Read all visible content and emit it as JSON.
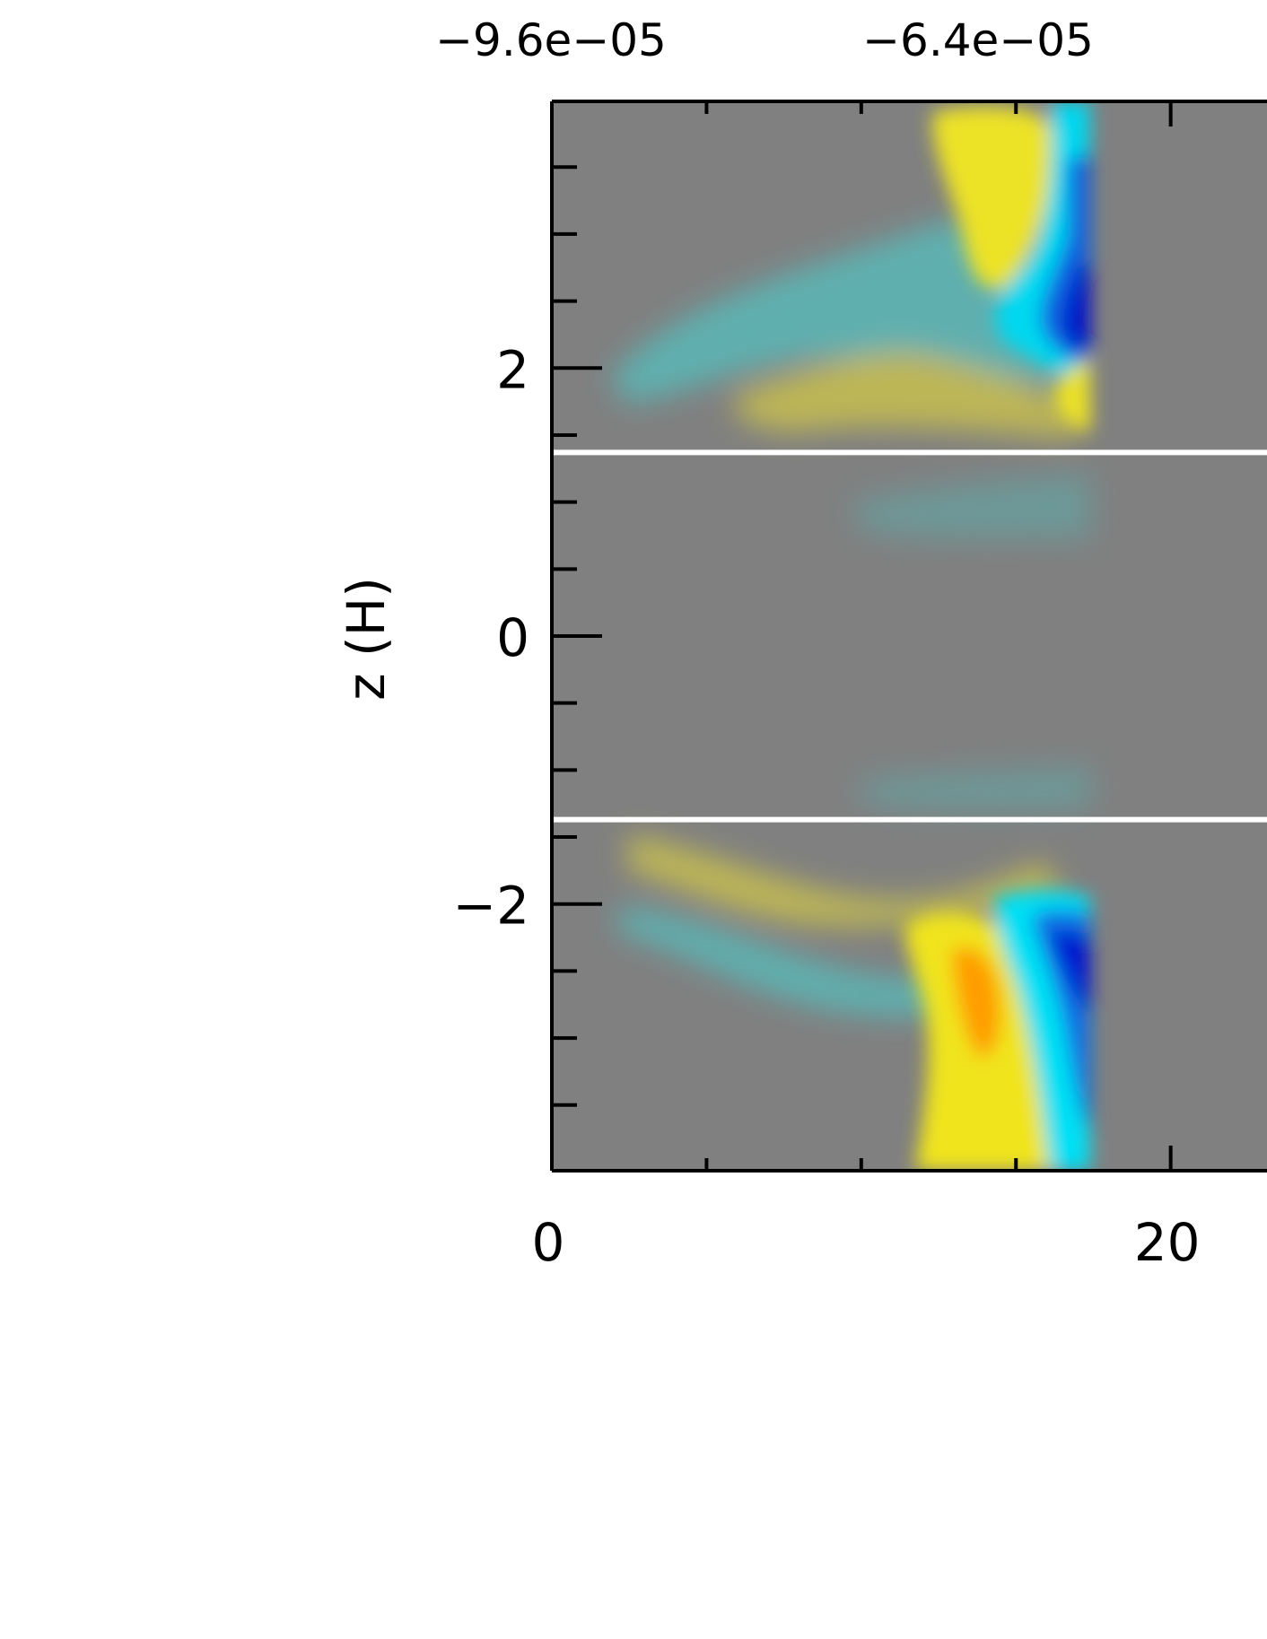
{
  "chart_data": {
    "type": "heatmap",
    "colorbar": {
      "tick_labels": [
        "−9.6e−05",
        "−6.4e−05"
      ],
      "tick_values": [
        -9.6e-05,
        -6.4e-05
      ]
    },
    "x_axis": {
      "tick_labels": [
        "0",
        "20"
      ],
      "tick_values": [
        0,
        20
      ],
      "range": [
        0,
        23.2
      ]
    },
    "y_axis": {
      "label": "z (H)",
      "tick_labels": [
        "2",
        "0",
        "−2"
      ],
      "tick_values": [
        2,
        0,
        -2
      ],
      "range": [
        -3.99,
        3.99
      ],
      "minor_step": 0.5
    },
    "white_lines_z": [
      1.37,
      -1.37
    ],
    "colors": {
      "background": "#808080",
      "teal": "#5ab8b8",
      "cyan": "#00e8ff",
      "blue_mid": "#0a78e8",
      "blue_dark": "#0010d0",
      "yellow": "#f4ec10",
      "orange": "#ff9a00",
      "white_line": "#ffffff"
    }
  }
}
